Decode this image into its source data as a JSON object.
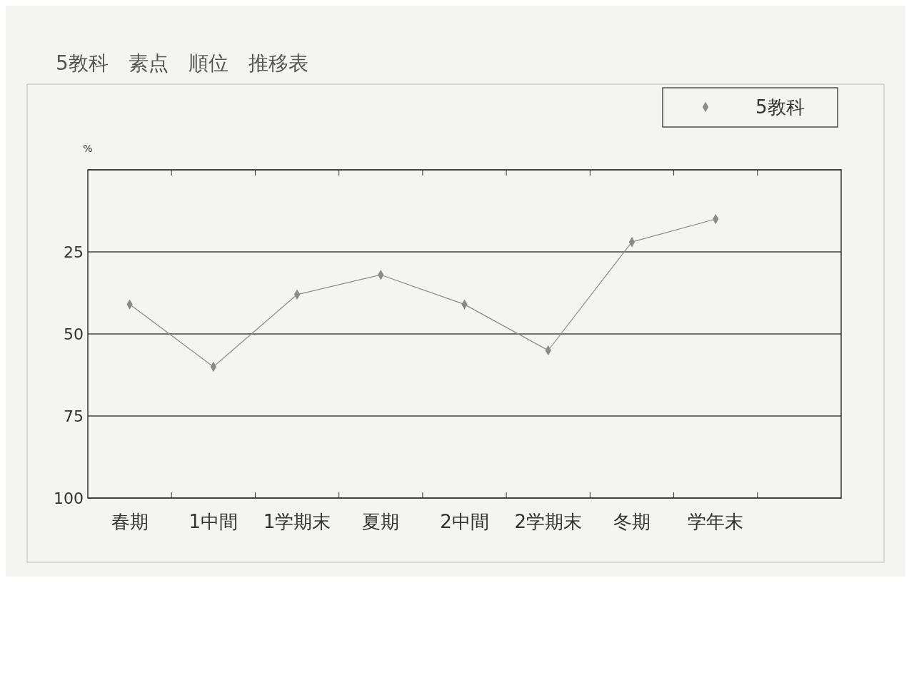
{
  "chart_data": {
    "type": "line",
    "title": "5教科　素点　順位　推移表",
    "ylabel": "%",
    "categories": [
      "春期",
      "1中間",
      "1学期末",
      "夏期",
      "2中間",
      "2学期末",
      "冬期",
      "学年末",
      null
    ],
    "series": [
      {
        "name": "5教科",
        "color": "#8a8a8a",
        "values": [
          41,
          60,
          38,
          32,
          41,
          55,
          22,
          15,
          null
        ]
      }
    ],
    "ylim": [
      100,
      0
    ],
    "yticks": [
      {
        "value": 0,
        "label": null
      },
      25,
      50,
      75,
      100
    ],
    "grid": "y",
    "legend": "top right",
    "marker": "diamond",
    "line_style": "solid"
  }
}
